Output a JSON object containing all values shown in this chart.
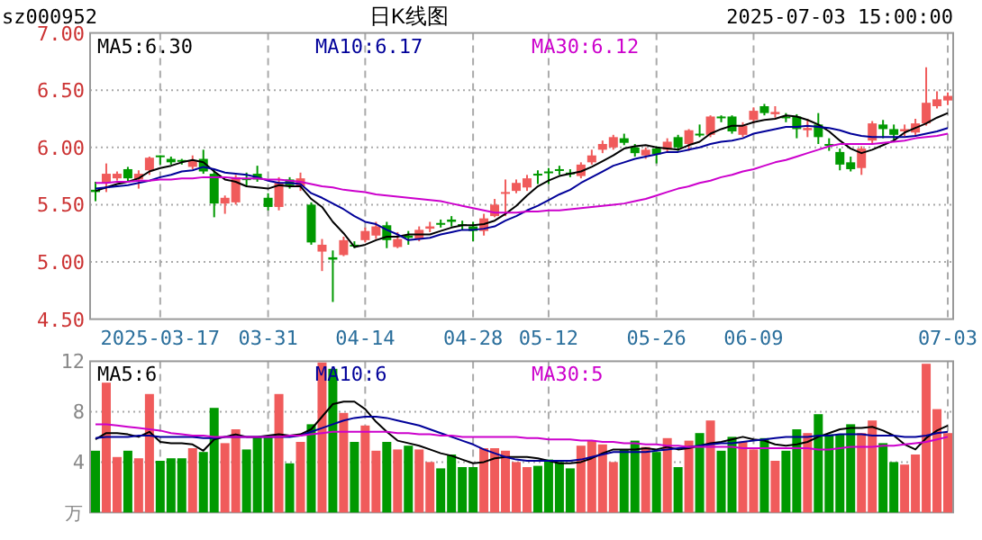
{
  "chart_data": [
    {
      "type": "candlestick",
      "title": "sz000952",
      "subtitle": "日K线图",
      "annotations": [
        "2025-07-03 15:00:00"
      ],
      "categories": [
        null,
        null,
        null,
        null,
        null,
        null,
        "2025-03-17",
        null,
        null,
        null,
        null,
        null,
        null,
        null,
        null,
        null,
        "03-31",
        null,
        null,
        null,
        null,
        null,
        null,
        null,
        null,
        "04-14",
        null,
        null,
        null,
        null,
        null,
        null,
        null,
        null,
        null,
        "04-28",
        null,
        null,
        null,
        null,
        null,
        null,
        "05-12",
        null,
        null,
        null,
        null,
        null,
        null,
        null,
        null,
        null,
        "05-26",
        null,
        null,
        null,
        null,
        null,
        null,
        null,
        null,
        "06-09",
        null,
        null,
        null,
        null,
        null,
        null,
        null,
        null,
        null,
        null,
        null,
        null,
        null,
        null,
        null,
        null,
        null,
        "07-03"
      ],
      "ohlc": [
        [
          5.63,
          5.7,
          5.53,
          5.61
        ],
        [
          5.69,
          5.86,
          5.61,
          5.77
        ],
        [
          5.73,
          5.79,
          5.71,
          5.77
        ],
        [
          5.81,
          5.83,
          5.7,
          5.73
        ],
        [
          5.72,
          5.8,
          5.64,
          5.77
        ],
        [
          5.8,
          5.92,
          5.76,
          5.91
        ],
        [
          5.93,
          5.93,
          5.85,
          5.92
        ],
        [
          5.9,
          5.92,
          5.85,
          5.87
        ],
        [
          5.89,
          5.9,
          5.85,
          5.88
        ],
        [
          5.83,
          5.93,
          5.81,
          5.88
        ],
        [
          5.9,
          5.98,
          5.77,
          5.79
        ],
        [
          5.77,
          5.8,
          5.39,
          5.51
        ],
        [
          5.51,
          5.58,
          5.42,
          5.56
        ],
        [
          5.52,
          5.76,
          5.5,
          5.74
        ],
        [
          5.73,
          5.78,
          5.66,
          5.72
        ],
        [
          5.77,
          5.84,
          5.7,
          5.72
        ],
        [
          5.56,
          5.6,
          5.45,
          5.48
        ],
        [
          5.48,
          5.74,
          5.45,
          5.69
        ],
        [
          5.72,
          5.74,
          5.64,
          5.67
        ],
        [
          5.66,
          5.78,
          5.62,
          5.73
        ],
        [
          5.5,
          5.52,
          5.15,
          5.17
        ],
        [
          5.09,
          5.2,
          4.92,
          5.15
        ],
        [
          5.04,
          5.1,
          4.65,
          5.02
        ],
        [
          5.06,
          5.22,
          5.05,
          5.19
        ],
        [
          5.15,
          5.18,
          5.12,
          5.14
        ],
        [
          5.19,
          5.3,
          5.17,
          5.27
        ],
        [
          5.23,
          5.35,
          5.2,
          5.31
        ],
        [
          5.32,
          5.35,
          5.12,
          5.19
        ],
        [
          5.13,
          5.26,
          5.12,
          5.2
        ],
        [
          5.23,
          5.27,
          5.15,
          5.21
        ],
        [
          5.2,
          5.31,
          5.18,
          5.28
        ],
        [
          5.29,
          5.35,
          5.26,
          5.31
        ],
        [
          5.34,
          5.37,
          5.3,
          5.33
        ],
        [
          5.37,
          5.4,
          5.31,
          5.35
        ],
        [
          5.33,
          5.36,
          5.28,
          5.32
        ],
        [
          5.31,
          5.35,
          5.18,
          5.27
        ],
        [
          5.27,
          5.42,
          5.23,
          5.38
        ],
        [
          5.4,
          5.55,
          5.39,
          5.5
        ],
        [
          5.6,
          5.72,
          5.4,
          5.61
        ],
        [
          5.62,
          5.72,
          5.6,
          5.69
        ],
        [
          5.65,
          5.76,
          5.62,
          5.73
        ],
        [
          5.77,
          5.8,
          5.68,
          5.76
        ],
        [
          5.79,
          5.82,
          5.68,
          5.78
        ],
        [
          5.81,
          5.84,
          5.76,
          5.8
        ],
        [
          5.78,
          5.81,
          5.74,
          5.77
        ],
        [
          5.75,
          5.87,
          5.73,
          5.85
        ],
        [
          5.87,
          5.98,
          5.85,
          5.93
        ],
        [
          5.98,
          6.06,
          5.95,
          6.03
        ],
        [
          6.0,
          6.11,
          5.98,
          6.09
        ],
        [
          6.08,
          6.12,
          6.02,
          6.04
        ],
        [
          6.0,
          6.03,
          5.92,
          5.95
        ],
        [
          5.93,
          6.0,
          5.9,
          5.98
        ],
        [
          5.99,
          6.01,
          5.86,
          5.94
        ],
        [
          5.98,
          6.08,
          5.96,
          6.05
        ],
        [
          6.09,
          6.11,
          5.97,
          6.0
        ],
        [
          6.03,
          6.16,
          5.97,
          6.15
        ],
        [
          6.12,
          6.2,
          6.09,
          6.11
        ],
        [
          6.11,
          6.28,
          6.09,
          6.27
        ],
        [
          6.27,
          6.28,
          6.22,
          6.26
        ],
        [
          6.27,
          6.28,
          6.12,
          6.14
        ],
        [
          6.11,
          6.22,
          6.09,
          6.19
        ],
        [
          6.24,
          6.35,
          6.21,
          6.32
        ],
        [
          6.36,
          6.38,
          6.28,
          6.3
        ],
        [
          6.29,
          6.36,
          6.26,
          6.31
        ],
        [
          6.27,
          6.3,
          6.22,
          6.26
        ],
        [
          6.27,
          6.29,
          6.08,
          6.16
        ],
        [
          6.15,
          6.25,
          6.09,
          6.17
        ],
        [
          6.2,
          6.3,
          6.03,
          6.09
        ],
        [
          6.03,
          6.08,
          5.97,
          6.02
        ],
        [
          5.96,
          5.99,
          5.8,
          5.85
        ],
        [
          5.87,
          5.92,
          5.79,
          5.81
        ],
        [
          5.82,
          6.01,
          5.76,
          5.99
        ],
        [
          6.06,
          6.23,
          6.03,
          6.21
        ],
        [
          6.2,
          6.24,
          6.08,
          6.16
        ],
        [
          6.16,
          6.2,
          6.05,
          6.11
        ],
        [
          6.14,
          6.2,
          6.1,
          6.16
        ],
        [
          6.13,
          6.25,
          6.1,
          6.21
        ],
        [
          6.21,
          6.7,
          6.19,
          6.39
        ],
        [
          6.36,
          6.49,
          6.34,
          6.42
        ],
        [
          6.41,
          6.48,
          6.37,
          6.45
        ]
      ],
      "colors": [
        "#009900",
        "#f05b5b",
        "#f05b5b",
        "#009900",
        "#f05b5b",
        "#f05b5b",
        "#009900",
        "#009900",
        "#009900",
        "#f05b5b",
        "#009900",
        "#009900",
        "#f05b5b",
        "#f05b5b",
        "#009900",
        "#009900",
        "#009900",
        "#f05b5b",
        "#009900",
        "#f05b5b",
        "#009900",
        "#f05b5b",
        "#009900",
        "#f05b5b",
        "#009900",
        "#f05b5b",
        "#f05b5b",
        "#009900",
        "#f05b5b",
        "#009900",
        "#f05b5b",
        "#f05b5b",
        "#009900",
        "#009900",
        "#009900",
        "#009900",
        "#f05b5b",
        "#f05b5b",
        "#f05b5b",
        "#f05b5b",
        "#f05b5b",
        "#009900",
        "#009900",
        "#009900",
        "#009900",
        "#f05b5b",
        "#f05b5b",
        "#f05b5b",
        "#f05b5b",
        "#009900",
        "#009900",
        "#f05b5b",
        "#009900",
        "#f05b5b",
        "#009900",
        "#f05b5b",
        "#009900",
        "#f05b5b",
        "#009900",
        "#009900",
        "#f05b5b",
        "#f05b5b",
        "#009900",
        "#f05b5b",
        "#009900",
        "#009900",
        "#f05b5b",
        "#009900",
        "#009900",
        "#009900",
        "#009900",
        "#f05b5b",
        "#f05b5b",
        "#009900",
        "#009900",
        "#f05b5b",
        "#f05b5b",
        "#f05b5b",
        "#f05b5b",
        "#f05b5b"
      ],
      "series": [
        {
          "name": "MA5:6.30",
          "type": "line",
          "color": "#000000",
          "values": [
            5.62,
            5.65,
            5.68,
            5.7,
            5.73,
            5.79,
            5.82,
            5.84,
            5.87,
            5.89,
            5.87,
            5.79,
            5.72,
            5.7,
            5.66,
            5.65,
            5.64,
            5.67,
            5.66,
            5.66,
            5.55,
            5.48,
            5.35,
            5.25,
            5.13,
            5.15,
            5.19,
            5.22,
            5.22,
            5.24,
            5.24,
            5.24,
            5.27,
            5.3,
            5.32,
            5.32,
            5.33,
            5.36,
            5.42,
            5.49,
            5.58,
            5.66,
            5.71,
            5.75,
            5.77,
            5.79,
            5.83,
            5.88,
            5.93,
            5.99,
            6.01,
            6.02,
            6.0,
            5.99,
            5.98,
            6.02,
            6.05,
            6.12,
            6.16,
            6.19,
            6.19,
            6.22,
            6.24,
            6.25,
            6.28,
            6.27,
            6.24,
            6.2,
            6.14,
            6.06,
            5.99,
            5.95,
            5.98,
            6.02,
            6.06,
            6.13,
            6.17,
            6.21,
            6.26,
            6.3
          ]
        },
        {
          "name": "MA10:6.17",
          "type": "line",
          "color": "#000099",
          "values": [
            5.64,
            5.65,
            5.66,
            5.67,
            5.69,
            5.71,
            5.74,
            5.76,
            5.79,
            5.8,
            5.83,
            5.81,
            5.78,
            5.77,
            5.76,
            5.74,
            5.71,
            5.69,
            5.69,
            5.68,
            5.6,
            5.56,
            5.51,
            5.46,
            5.4,
            5.35,
            5.33,
            5.28,
            5.24,
            5.19,
            5.2,
            5.21,
            5.24,
            5.26,
            5.28,
            5.28,
            5.29,
            5.31,
            5.36,
            5.4,
            5.45,
            5.49,
            5.54,
            5.59,
            5.63,
            5.69,
            5.74,
            5.79,
            5.84,
            5.87,
            5.9,
            5.92,
            5.94,
            5.96,
            5.96,
            5.98,
            6.0,
            6.03,
            6.05,
            6.06,
            6.08,
            6.12,
            6.14,
            6.16,
            6.18,
            6.18,
            6.19,
            6.18,
            6.17,
            6.15,
            6.12,
            6.1,
            6.09,
            6.09,
            6.09,
            6.09,
            6.1,
            6.12,
            6.14,
            6.17
          ]
        },
        {
          "name": "MA30:6.12",
          "type": "line",
          "color": "#cc00cc",
          "values": [
            5.69,
            5.69,
            5.7,
            5.7,
            5.71,
            5.71,
            5.72,
            5.72,
            5.73,
            5.73,
            5.74,
            5.74,
            5.74,
            5.73,
            5.73,
            5.73,
            5.72,
            5.72,
            5.71,
            5.7,
            5.68,
            5.66,
            5.65,
            5.63,
            5.62,
            5.61,
            5.59,
            5.58,
            5.57,
            5.56,
            5.55,
            5.54,
            5.53,
            5.51,
            5.49,
            5.47,
            5.45,
            5.43,
            5.43,
            5.43,
            5.44,
            5.44,
            5.45,
            5.45,
            5.46,
            5.47,
            5.48,
            5.49,
            5.5,
            5.51,
            5.53,
            5.55,
            5.58,
            5.61,
            5.64,
            5.66,
            5.69,
            5.71,
            5.74,
            5.76,
            5.79,
            5.81,
            5.84,
            5.87,
            5.89,
            5.92,
            5.95,
            5.98,
            6.01,
            6.03,
            6.03,
            6.03,
            6.03,
            6.04,
            6.05,
            6.06,
            6.08,
            6.09,
            6.1,
            6.12
          ]
        }
      ],
      "ylim": [
        4.5,
        7
      ],
      "yticks": [
        {
          "value": 4.5,
          "label": "4.50"
        },
        {
          "value": 5,
          "label": "5.00"
        },
        {
          "value": 5.5,
          "label": "5.50"
        },
        {
          "value": 6,
          "label": "6.00"
        },
        {
          "value": 6.5,
          "label": "6.50"
        },
        {
          "value": 7,
          "label": "7.00"
        }
      ],
      "grid": true,
      "legend": "top left"
    },
    {
      "type": "bar",
      "ylabel": "万",
      "tick_labels": "y",
      "categories": [
        null,
        null,
        null,
        null,
        null,
        null,
        null,
        null,
        null,
        null,
        null,
        null,
        null,
        null,
        null,
        null,
        null,
        null,
        null,
        null,
        null,
        null,
        null,
        null,
        null,
        null,
        null,
        null,
        null,
        null,
        null,
        null,
        null,
        null,
        null,
        null,
        null,
        null,
        null,
        null,
        null,
        null,
        null,
        null,
        null,
        null,
        null,
        null,
        null,
        null,
        null,
        null,
        null,
        null,
        null,
        null,
        null,
        null,
        null,
        null,
        null,
        null,
        null,
        null,
        null,
        null,
        null,
        null,
        null,
        null,
        null,
        null,
        null,
        null,
        null,
        null,
        null,
        null,
        null,
        null
      ],
      "values": [
        4.9,
        10.3,
        4.4,
        4.9,
        4.3,
        9.4,
        4.1,
        4.3,
        4.3,
        5.1,
        4.8,
        8.3,
        5.5,
        6.6,
        5.0,
        6.0,
        6.0,
        9.4,
        3.9,
        5.6,
        7.0,
        11.9,
        11.4,
        7.9,
        5.6,
        6.9,
        4.9,
        5.6,
        5.0,
        5.3,
        5.0,
        4.0,
        3.5,
        4.6,
        3.6,
        3.6,
        5.1,
        5.1,
        4.9,
        4.0,
        3.6,
        3.7,
        4.2,
        4.0,
        3.5,
        5.3,
        5.7,
        5.4,
        4.0,
        5.0,
        5.7,
        5.2,
        4.8,
        5.9,
        3.6,
        5.7,
        6.3,
        7.3,
        4.9,
        6.0,
        5.6,
        5.0,
        5.9,
        4.1,
        4.9,
        6.6,
        6.3,
        7.8,
        6.2,
        6.2,
        7.0,
        6.3,
        7.3,
        5.5,
        4.0,
        3.8,
        4.6,
        11.8,
        8.2,
        6.3
      ],
      "colors": [
        "#009900",
        "#f05b5b",
        "#f05b5b",
        "#009900",
        "#f05b5b",
        "#f05b5b",
        "#009900",
        "#009900",
        "#009900",
        "#f05b5b",
        "#009900",
        "#009900",
        "#f05b5b",
        "#f05b5b",
        "#009900",
        "#009900",
        "#009900",
        "#f05b5b",
        "#009900",
        "#f05b5b",
        "#009900",
        "#f05b5b",
        "#009900",
        "#f05b5b",
        "#009900",
        "#f05b5b",
        "#f05b5b",
        "#009900",
        "#f05b5b",
        "#009900",
        "#f05b5b",
        "#f05b5b",
        "#009900",
        "#009900",
        "#009900",
        "#009900",
        "#f05b5b",
        "#f05b5b",
        "#f05b5b",
        "#f05b5b",
        "#f05b5b",
        "#009900",
        "#009900",
        "#009900",
        "#009900",
        "#f05b5b",
        "#f05b5b",
        "#f05b5b",
        "#f05b5b",
        "#009900",
        "#009900",
        "#f05b5b",
        "#009900",
        "#f05b5b",
        "#009900",
        "#f05b5b",
        "#009900",
        "#f05b5b",
        "#009900",
        "#009900",
        "#f05b5b",
        "#f05b5b",
        "#009900",
        "#f05b5b",
        "#009900",
        "#009900",
        "#f05b5b",
        "#009900",
        "#009900",
        "#009900",
        "#009900",
        "#f05b5b",
        "#f05b5b",
        "#009900",
        "#009900",
        "#f05b5b",
        "#f05b5b",
        "#f05b5b",
        "#f05b5b",
        "#f05b5b"
      ],
      "series": [
        {
          "name": "MA5:6",
          "type": "line",
          "color": "#000000",
          "values": [
            5.8,
            6.3,
            6.3,
            6.2,
            6.0,
            6.4,
            5.6,
            5.5,
            5.5,
            5.4,
            4.9,
            5.8,
            6.0,
            6.2,
            6.0,
            6.0,
            6.1,
            6.2,
            6.1,
            6.2,
            6.6,
            7.6,
            8.6,
            8.8,
            8.8,
            8.2,
            7.2,
            6.4,
            5.7,
            5.5,
            5.3,
            5.0,
            4.7,
            4.5,
            4.2,
            3.9,
            4.0,
            4.3,
            4.4,
            4.4,
            4.4,
            4.3,
            4.1,
            3.9,
            3.9,
            4.0,
            4.3,
            4.7,
            5.0,
            5.0,
            5.0,
            5.1,
            5.0,
            5.2,
            5.0,
            5.1,
            5.3,
            5.5,
            5.6,
            5.8,
            6.0,
            5.8,
            5.7,
            5.4,
            5.3,
            5.4,
            5.6,
            6.0,
            6.3,
            6.6,
            6.7,
            6.7,
            6.8,
            6.5,
            6.1,
            5.4,
            5.0,
            5.9,
            6.5,
            6.9
          ]
        },
        {
          "name": "MA10:6",
          "type": "line",
          "color": "#000099",
          "values": [
            5.9,
            6.0,
            6.0,
            6.0,
            6.1,
            6.1,
            6.0,
            6.0,
            6.0,
            6.0,
            5.9,
            5.9,
            6.0,
            6.0,
            6.0,
            6.0,
            6.0,
            6.0,
            6.0,
            6.1,
            6.4,
            6.7,
            7.0,
            7.3,
            7.5,
            7.6,
            7.6,
            7.5,
            7.3,
            7.1,
            6.9,
            6.6,
            6.3,
            6.0,
            5.7,
            5.4,
            5.0,
            4.7,
            4.4,
            4.2,
            4.1,
            4.1,
            4.1,
            4.1,
            4.1,
            4.2,
            4.4,
            4.6,
            4.8,
            4.8,
            4.8,
            4.8,
            4.9,
            5.0,
            5.1,
            5.2,
            5.3,
            5.4,
            5.5,
            5.5,
            5.6,
            5.7,
            5.8,
            5.9,
            6.0,
            6.0,
            6.0,
            6.1,
            6.1,
            6.2,
            6.2,
            6.2,
            6.1,
            6.1,
            6.1,
            6.0,
            6.0,
            6.1,
            6.3,
            6.4
          ]
        },
        {
          "name": "MA30:5",
          "type": "line",
          "color": "#cc00cc",
          "values": [
            7.0,
            7.0,
            6.9,
            6.8,
            6.7,
            6.6,
            6.5,
            6.3,
            6.2,
            6.1,
            6.1,
            6.0,
            6.0,
            6.0,
            6.0,
            6.0,
            6.0,
            6.0,
            6.1,
            6.1,
            6.2,
            6.3,
            6.4,
            6.4,
            6.4,
            6.4,
            6.4,
            6.4,
            6.3,
            6.3,
            6.2,
            6.2,
            6.1,
            6.1,
            6.0,
            6.0,
            6.0,
            6.0,
            6.0,
            6.0,
            5.9,
            5.9,
            5.8,
            5.8,
            5.8,
            5.7,
            5.7,
            5.6,
            5.6,
            5.5,
            5.5,
            5.4,
            5.4,
            5.3,
            5.3,
            5.2,
            5.2,
            5.2,
            5.2,
            5.2,
            5.1,
            5.1,
            5.1,
            5.1,
            5.1,
            5.1,
            5.1,
            5.0,
            5.0,
            5.1,
            5.2,
            5.2,
            5.2,
            5.3,
            5.3,
            5.4,
            5.5,
            5.6,
            5.8,
            6.0
          ]
        }
      ],
      "ylim": [
        0,
        12
      ],
      "yticks": [
        4,
        8,
        12
      ],
      "grid": true,
      "legend": "top left"
    }
  ]
}
